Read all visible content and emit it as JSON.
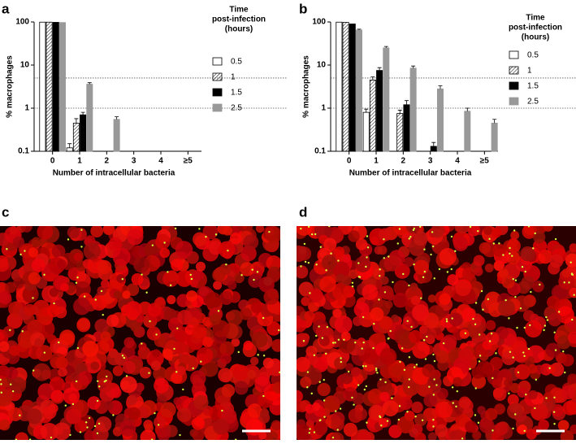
{
  "chart_data": [
    {
      "type": "bar",
      "panel_label": "a",
      "y_label": "% macrophages",
      "x_label": "Number of intracellular bacteria",
      "log_y": true,
      "ylim": [
        0.1,
        100
      ],
      "yticks": [
        0.1,
        1,
        10,
        100
      ],
      "reference_lines": [
        5,
        1
      ],
      "legend_title": [
        "Time",
        "post-infection",
        "(hours)"
      ],
      "categories": [
        "0",
        "1",
        "2",
        "3",
        "4",
        "≥5"
      ],
      "series": [
        {
          "name": "0.5",
          "color": "#ffffff",
          "values": [
            99,
            0.12,
            null,
            null,
            null,
            null
          ],
          "errors": [
            null,
            0.03,
            null,
            null,
            null,
            null
          ]
        },
        {
          "name": "1",
          "color": "#ffffff",
          "hatch": true,
          "values": [
            99,
            0.45,
            null,
            null,
            null,
            null
          ],
          "errors": [
            null,
            0.12,
            null,
            null,
            null,
            null
          ]
        },
        {
          "name": "1.5",
          "color": "#000000",
          "values": [
            98,
            0.7,
            null,
            null,
            null,
            null
          ],
          "errors": [
            null,
            0.1,
            null,
            null,
            null,
            null
          ]
        },
        {
          "name": "2.5",
          "color": "#999999",
          "values": [
            97,
            3.6,
            0.55,
            null,
            null,
            null
          ],
          "errors": [
            null,
            0.3,
            0.08,
            null,
            null,
            null
          ]
        }
      ]
    },
    {
      "type": "bar",
      "panel_label": "b",
      "y_label": "% macrophages",
      "x_label": "Number of intracellular bacteria",
      "log_y": true,
      "ylim": [
        0.1,
        100
      ],
      "yticks": [
        0.1,
        1,
        10,
        100
      ],
      "reference_lines": [
        5,
        1
      ],
      "legend_title": [
        "Time",
        "post-infection",
        "(hours)"
      ],
      "categories": [
        "0",
        "1",
        "2",
        "3",
        "4",
        "≥5"
      ],
      "series": [
        {
          "name": "0.5",
          "color": "#ffffff",
          "values": [
            99,
            0.8,
            null,
            null,
            null,
            null
          ],
          "errors": [
            null,
            0.15,
            null,
            null,
            null,
            null
          ]
        },
        {
          "name": "1",
          "color": "#ffffff",
          "hatch": true,
          "values": [
            98,
            4.5,
            0.75,
            null,
            null,
            null
          ],
          "errors": [
            null,
            0.8,
            0.15,
            null,
            null,
            null
          ]
        },
        {
          "name": "1.5",
          "color": "#000000",
          "values": [
            90,
            7.5,
            1.2,
            0.13,
            null,
            null
          ],
          "errors": [
            null,
            1.2,
            0.3,
            0.03,
            null,
            null
          ]
        },
        {
          "name": "2.5",
          "color": "#999999",
          "values": [
            65,
            25,
            8.5,
            2.8,
            0.85,
            0.45
          ],
          "errors": [
            3,
            2,
            1,
            0.5,
            0.15,
            0.1
          ]
        }
      ]
    }
  ],
  "images": [
    {
      "panel_label": "c"
    },
    {
      "panel_label": "d"
    }
  ]
}
